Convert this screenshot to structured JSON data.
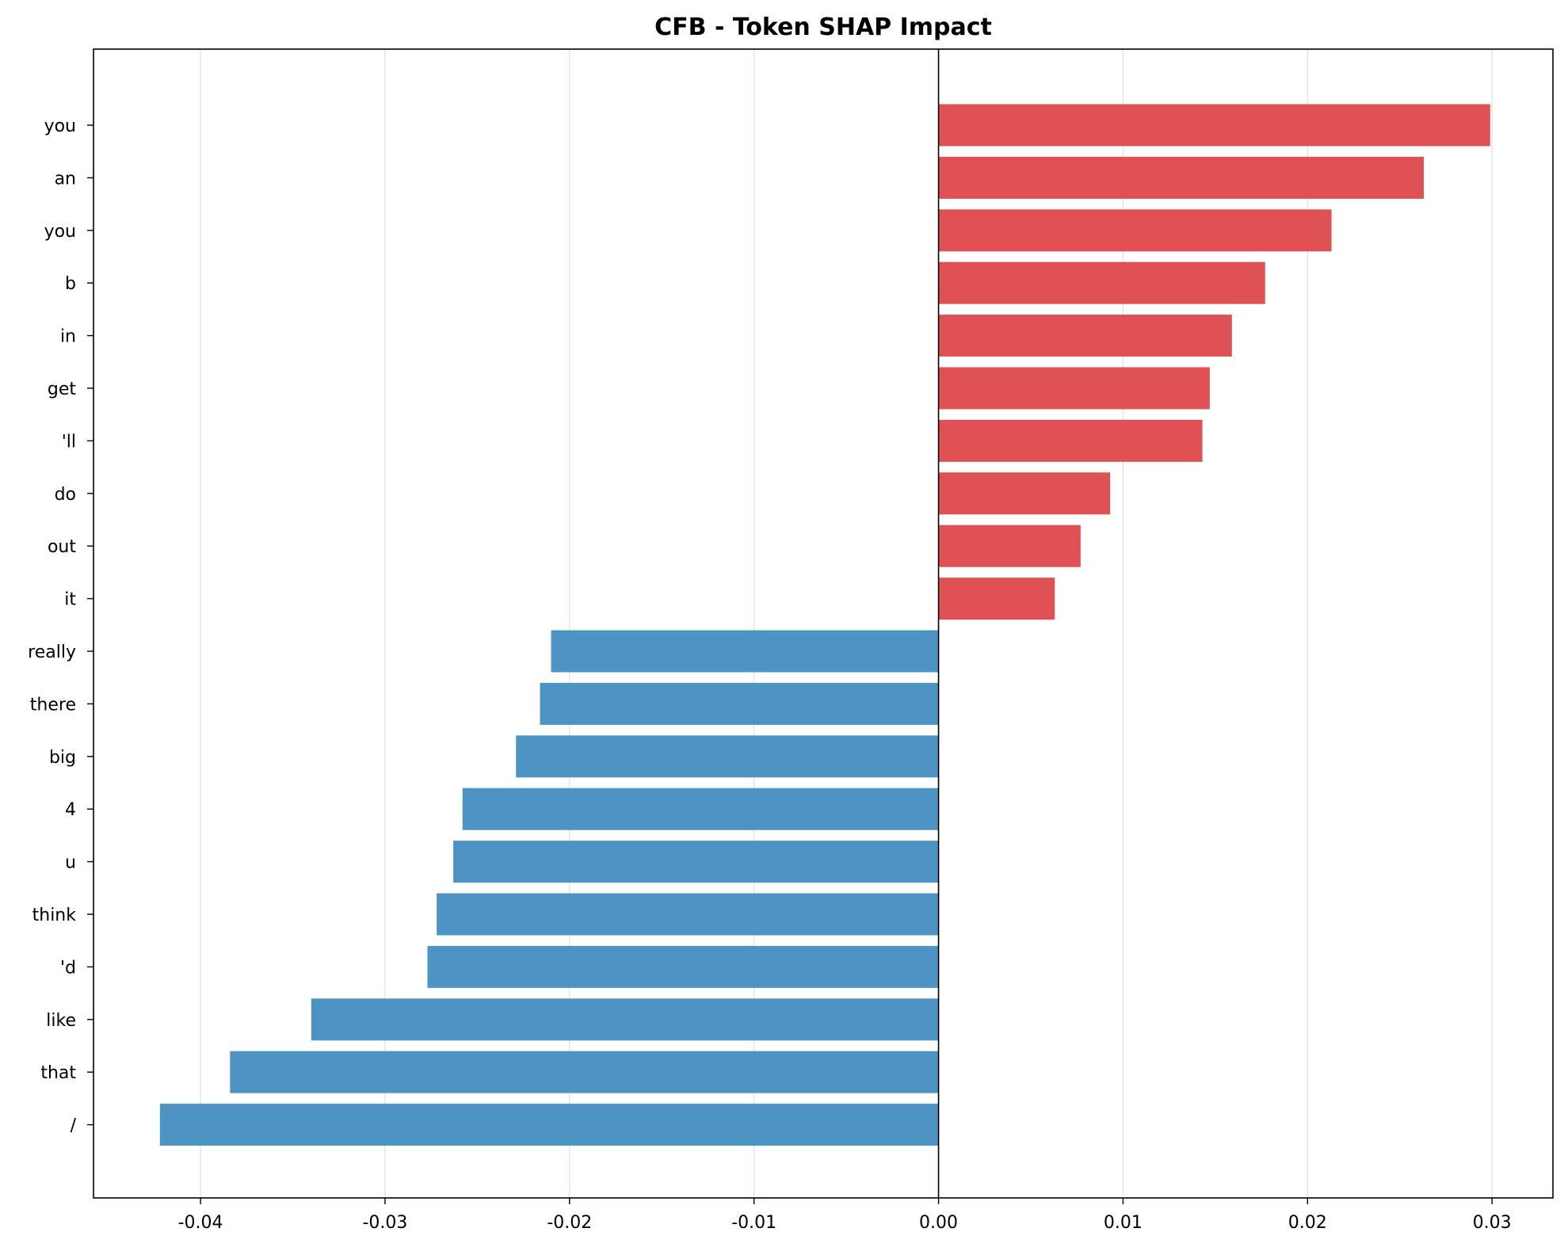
{
  "chart_data": {
    "type": "bar",
    "orientation": "horizontal",
    "title": "CFB - Token SHAP Impact",
    "xlabel": "",
    "ylabel": "",
    "xlim": [
      -0.0458,
      0.0333
    ],
    "xticks": [
      "-0.04",
      "-0.03",
      "-0.02",
      "-0.01",
      "0.00",
      "0.01",
      "0.02",
      "0.03"
    ],
    "xtick_values": [
      -0.04,
      -0.03,
      -0.02,
      -0.01,
      0.0,
      0.01,
      0.02,
      0.03
    ],
    "grid": "vertical",
    "legend": "none",
    "colors": {
      "positive": "#e05154",
      "negative": "#4d93c4",
      "zero_line": "#000000",
      "grid": "#e3e3e3"
    },
    "categories": [
      "you",
      "an",
      "you",
      "b",
      "in",
      "get",
      "'ll",
      "do",
      "out",
      "it",
      "really",
      "there",
      "big",
      "4",
      "u",
      "think",
      "'d",
      "like",
      "that",
      "/"
    ],
    "values": [
      0.0299,
      0.0263,
      0.0213,
      0.0177,
      0.0159,
      0.0147,
      0.0143,
      0.0093,
      0.0077,
      0.0063,
      -0.021,
      -0.0216,
      -0.0229,
      -0.0258,
      -0.0263,
      -0.0272,
      -0.0277,
      -0.034,
      -0.0384,
      -0.0422
    ]
  }
}
